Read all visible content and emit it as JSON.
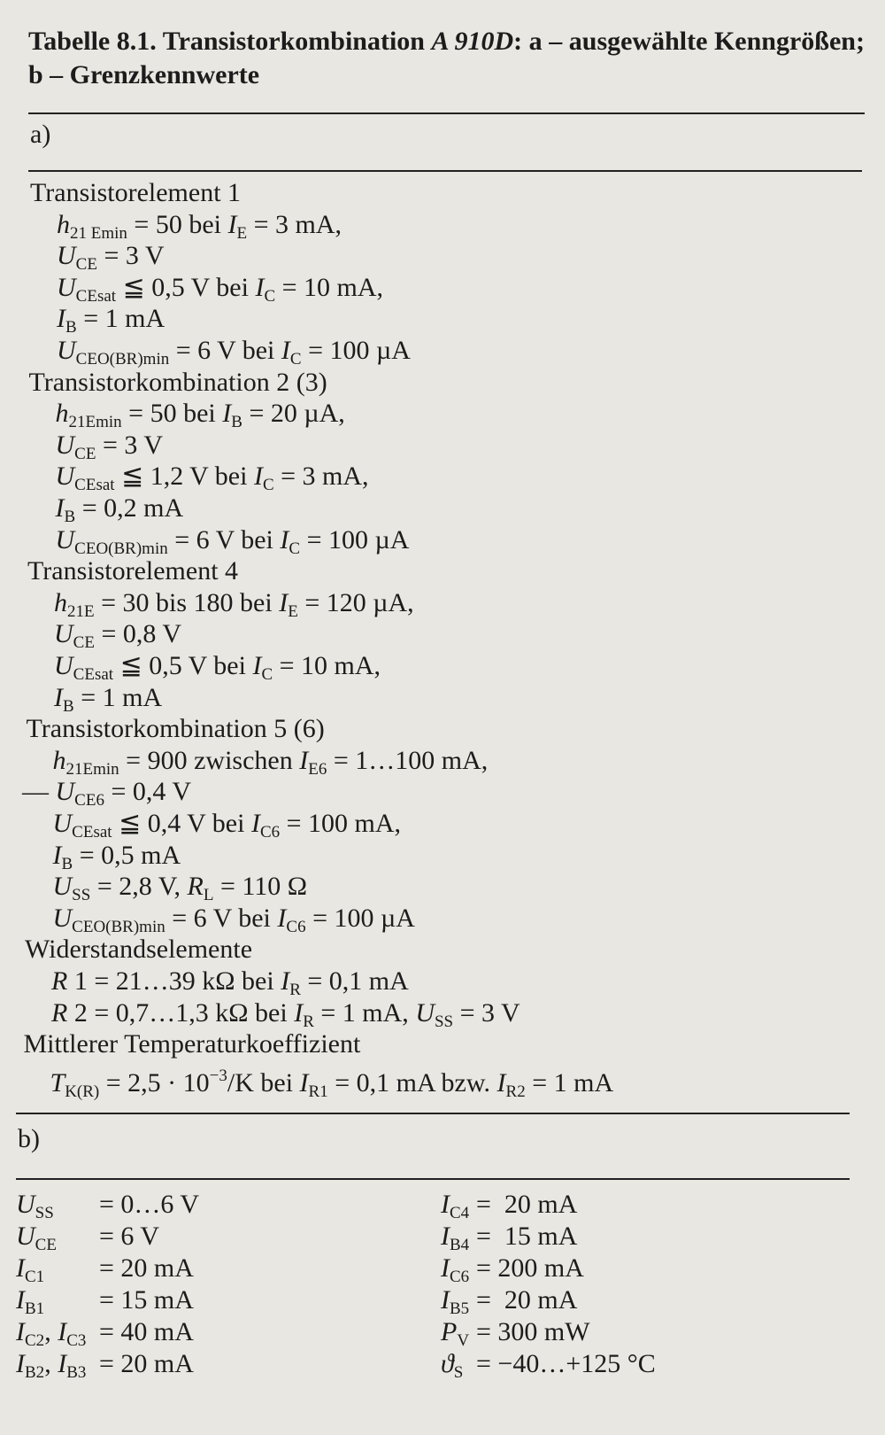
{
  "caption": [
    {
      "b": "Tabelle 8.1."
    },
    {
      "b": " Transistorkombination "
    },
    {
      "bi": "A 910D"
    },
    {
      "b": ": a – ausgewählte Kenngrößen; b – Grenzkennwerte"
    }
  ],
  "part_a": {
    "label": "a)",
    "groups": [
      {
        "heading": "Transistorelement 1",
        "lines": [
          [
            {
              "i": "h"
            },
            {
              "sub": "21 Emin"
            },
            {
              "t": " = 50 bei "
            },
            {
              "i": "I"
            },
            {
              "sub": "E"
            },
            {
              "t": " = 3 mA,"
            }
          ],
          [
            {
              "i": "U"
            },
            {
              "sub": "CE"
            },
            {
              "t": " = 3 V"
            }
          ],
          [
            {
              "i": "U"
            },
            {
              "sub": "CEsat"
            },
            {
              "t": " ≦ 0,5 V bei "
            },
            {
              "i": "I"
            },
            {
              "sub": "C"
            },
            {
              "t": " = 10 mA,"
            }
          ],
          [
            {
              "i": "I"
            },
            {
              "sub": "B"
            },
            {
              "t": " = 1 mA"
            }
          ],
          [
            {
              "i": "U"
            },
            {
              "sub": "CEO(BR)min"
            },
            {
              "t": " = 6 V bei "
            },
            {
              "i": "I"
            },
            {
              "sub": "C"
            },
            {
              "t": " = 100 µA"
            }
          ]
        ]
      },
      {
        "heading": "Transistorkombination 2 (3)",
        "lines": [
          [
            {
              "i": "h"
            },
            {
              "sub": "21Emin"
            },
            {
              "t": " = 50 bei "
            },
            {
              "i": "I"
            },
            {
              "sub": "B"
            },
            {
              "t": " = 20 µA,"
            }
          ],
          [
            {
              "i": "U"
            },
            {
              "sub": "CE"
            },
            {
              "t": " = 3 V"
            }
          ],
          [
            {
              "i": "U"
            },
            {
              "sub": "CEsat"
            },
            {
              "t": " ≦ 1,2 V bei "
            },
            {
              "i": "I"
            },
            {
              "sub": "C"
            },
            {
              "t": " = 3 mA,"
            }
          ],
          [
            {
              "i": "I"
            },
            {
              "sub": "B"
            },
            {
              "t": " = 0,2 mA"
            }
          ],
          [
            {
              "i": "U"
            },
            {
              "sub": "CEO(BR)min"
            },
            {
              "t": " = 6 V bei "
            },
            {
              "i": "I"
            },
            {
              "sub": "C"
            },
            {
              "t": " = 100 µA"
            }
          ]
        ]
      },
      {
        "heading": "Transistorelement 4",
        "lines": [
          [
            {
              "i": "h"
            },
            {
              "sub": "21E"
            },
            {
              "t": " = 30 bis 180 bei "
            },
            {
              "i": "I"
            },
            {
              "sub": "E"
            },
            {
              "t": " = 120 µA,"
            }
          ],
          [
            {
              "i": "U"
            },
            {
              "sub": "CE"
            },
            {
              "t": " = 0,8 V"
            }
          ],
          [
            {
              "i": "U"
            },
            {
              "sub": "CEsat"
            },
            {
              "t": " ≦ 0,5 V bei "
            },
            {
              "i": "I"
            },
            {
              "sub": "C"
            },
            {
              "t": " = 10 mA,"
            }
          ],
          [
            {
              "i": "I"
            },
            {
              "sub": "B"
            },
            {
              "t": " = 1 mA"
            }
          ]
        ]
      },
      {
        "heading": "Transistorkombination 5 (6)",
        "lines": [
          [
            {
              "i": "h"
            },
            {
              "sub": "21Emin"
            },
            {
              "t": " = 900 zwischen "
            },
            {
              "i": "I"
            },
            {
              "sub": "E6"
            },
            {
              "t": " = 1…100 mA,"
            }
          ],
          [
            {
              "t": "— "
            },
            {
              "i": "U"
            },
            {
              "sub": "CE6"
            },
            {
              "t": " = 0,4 V"
            }
          ],
          [
            {
              "i": "U"
            },
            {
              "sub": "CEsat"
            },
            {
              "t": " ≦ 0,4 V bei "
            },
            {
              "i": "I"
            },
            {
              "sub": "C6"
            },
            {
              "t": " = 100 mA,"
            }
          ],
          [
            {
              "i": "I"
            },
            {
              "sub": "B"
            },
            {
              "t": " = 0,5 mA"
            }
          ],
          [
            {
              "i": "U"
            },
            {
              "sub": "SS"
            },
            {
              "t": " = 2,8 V, "
            },
            {
              "i": "R"
            },
            {
              "sub": "L"
            },
            {
              "t": " = 110 Ω"
            }
          ],
          [
            {
              "i": "U"
            },
            {
              "sub": "CEO(BR)min"
            },
            {
              "t": " = 6 V bei "
            },
            {
              "i": "I"
            },
            {
              "sub": "C6"
            },
            {
              "t": " = 100 µA"
            }
          ]
        ]
      },
      {
        "heading": "Widerstandselemente",
        "lines": [
          [
            {
              "i": "R"
            },
            {
              "t": " 1 = 21…39 kΩ bei "
            },
            {
              "i": "I"
            },
            {
              "sub": "R"
            },
            {
              "t": " = 0,1 mA"
            }
          ],
          [
            {
              "i": "R"
            },
            {
              "t": " 2 = 0,7…1,3 kΩ bei "
            },
            {
              "i": "I"
            },
            {
              "sub": "R"
            },
            {
              "t": " = 1 mA, "
            },
            {
              "i": "U"
            },
            {
              "sub": "SS"
            },
            {
              "t": " = 3 V"
            }
          ]
        ]
      },
      {
        "heading": "Mittlerer Temperaturkoeffizient",
        "lines": [
          [
            {
              "i": "T"
            },
            {
              "sub": "K(R)"
            },
            {
              "t": " = 2,5 · 10"
            },
            {
              "sup": "−3"
            },
            {
              "t": "/K bei "
            },
            {
              "i": "I"
            },
            {
              "sub": "R1"
            },
            {
              "t": " = 0,1 mA bzw. "
            },
            {
              "i": "I"
            },
            {
              "sub": "R2"
            },
            {
              "t": " = 1 mA"
            }
          ]
        ]
      }
    ]
  },
  "part_b": {
    "label": "b)",
    "left": [
      {
        "name": [
          {
            "i": "U"
          },
          {
            "sub": "SS"
          }
        ],
        "value": "= 0…6 V"
      },
      {
        "name": [
          {
            "i": "U"
          },
          {
            "sub": "CE"
          }
        ],
        "value": "= 6 V"
      },
      {
        "name": [
          {
            "i": "I"
          },
          {
            "sub": "C1"
          }
        ],
        "value": "= 20 mA"
      },
      {
        "name": [
          {
            "i": "I"
          },
          {
            "sub": "B1"
          }
        ],
        "value": "= 15 mA"
      },
      {
        "name": [
          {
            "i": "I"
          },
          {
            "sub": "C2"
          },
          {
            "t": ", "
          },
          {
            "i": "I"
          },
          {
            "sub": "C3"
          }
        ],
        "value": "= 40 mA"
      },
      {
        "name": [
          {
            "i": "I"
          },
          {
            "sub": "B2"
          },
          {
            "t": ", "
          },
          {
            "i": "I"
          },
          {
            "sub": "B3"
          }
        ],
        "value": "= 20 mA"
      }
    ],
    "right": [
      {
        "name": [
          {
            "i": "I"
          },
          {
            "sub": "C4"
          }
        ],
        "value": "=  20 mA"
      },
      {
        "name": [
          {
            "i": "I"
          },
          {
            "sub": "B4"
          }
        ],
        "value": "=  15 mA"
      },
      {
        "name": [
          {
            "i": "I"
          },
          {
            "sub": "C6"
          }
        ],
        "value": "= 200 mA"
      },
      {
        "name": [
          {
            "i": "I"
          },
          {
            "sub": "B5"
          }
        ],
        "value": "=  20 mA"
      },
      {
        "name": [
          {
            "i": "P"
          },
          {
            "sub": "V"
          }
        ],
        "value": "= 300 mW"
      },
      {
        "name": [
          {
            "i": "ϑ"
          },
          {
            "sub": "S"
          }
        ],
        "value": "= −40…+125 °C"
      }
    ]
  }
}
